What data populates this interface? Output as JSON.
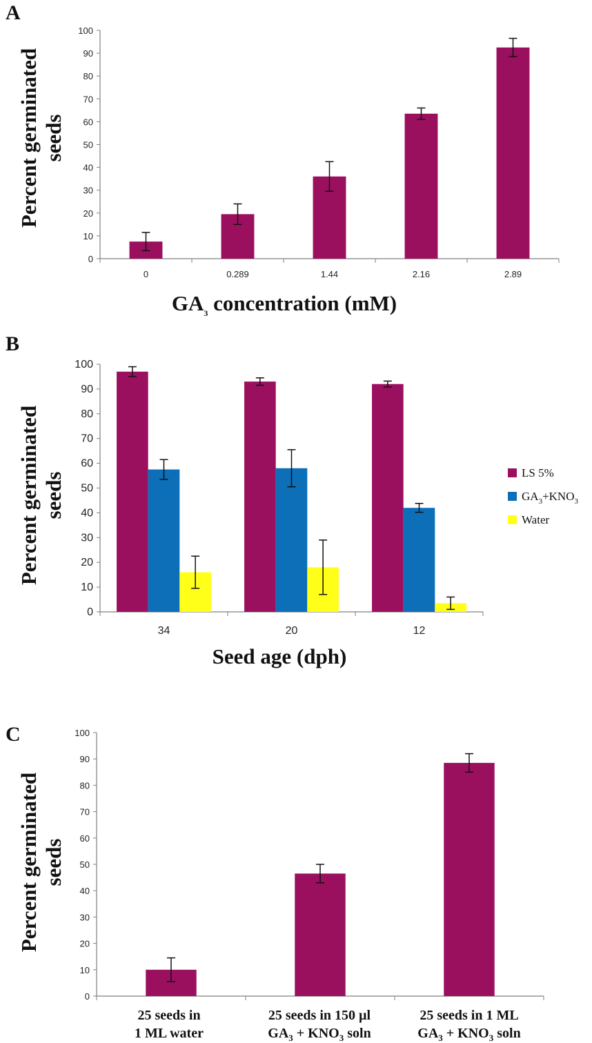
{
  "colors": {
    "magenta": "#9b0f5f",
    "blue": "#0c6fb8",
    "yellow": "#ffff1a",
    "axis": "#7f7f7f",
    "error": "#111111"
  },
  "chart_data": [
    {
      "panel": "A",
      "type": "bar",
      "ylabel_line1": "Percent germinated",
      "ylabel_line2": "seeds",
      "xlabel_main": "GA",
      "xlabel_sub": "3",
      "xlabel_rest": " concentration (mM)",
      "categories": [
        "0",
        "0.289",
        "1.44",
        "2.16",
        "2.89"
      ],
      "series": [
        {
          "values": [
            7.5,
            19.5,
            36,
            63.5,
            92.5
          ],
          "errors": [
            4,
            4.5,
            6.5,
            2.5,
            4
          ],
          "color": "#9b0f5f"
        }
      ],
      "ylim": [
        0,
        100
      ],
      "yticks": [
        0,
        10,
        20,
        30,
        40,
        50,
        60,
        70,
        80,
        90,
        100
      ],
      "grid": false
    },
    {
      "panel": "B",
      "type": "bar",
      "ylabel_line1": "Percent germinated",
      "ylabel_line2": "seeds",
      "xlabel": "Seed age (dph)",
      "categories": [
        "34",
        "20",
        "12"
      ],
      "series": [
        {
          "name": "LS 5%",
          "values": [
            97,
            93,
            92
          ],
          "errors": [
            2,
            1.5,
            1.2
          ],
          "color": "#9b0f5f"
        },
        {
          "name_main": "GA",
          "name_sub": "3",
          "name_rest": "+KNO",
          "name_sub2": "3",
          "values": [
            57.5,
            58,
            42
          ],
          "errors": [
            4,
            7.5,
            1.8
          ],
          "color": "#0c6fb8"
        },
        {
          "name": "Water",
          "values": [
            16,
            18,
            3.5
          ],
          "errors": [
            6.5,
            11,
            2.5
          ],
          "color": "#ffff1a"
        }
      ],
      "ylim": [
        0,
        100
      ],
      "yticks": [
        0,
        10,
        20,
        30,
        40,
        50,
        60,
        70,
        80,
        90,
        100
      ],
      "legend": "right",
      "grid": false
    },
    {
      "panel": "C",
      "type": "bar",
      "ylabel_line1": "Percent germinated",
      "ylabel_line2": "seeds",
      "categories": [
        {
          "line1": "25 seeds in",
          "line2": "1 ML water"
        },
        {
          "line1": "25 seeds in 150 µl",
          "line2_a": "GA",
          "line2_sub": "3",
          "line2_b": " + KNO",
          "line2_sub2": "3",
          "line2_c": " soln"
        },
        {
          "line1": "25 seeds in 1 ML",
          "line2_a": "GA",
          "line2_sub": "3",
          "line2_b": " + KNO",
          "line2_sub2": "3",
          "line2_c": " soln"
        }
      ],
      "series": [
        {
          "values": [
            10,
            46.5,
            88.5
          ],
          "errors": [
            4.5,
            3.5,
            3.5
          ],
          "color": "#9b0f5f"
        }
      ],
      "ylim": [
        0,
        100
      ],
      "yticks": [
        0,
        10,
        20,
        30,
        40,
        50,
        60,
        70,
        80,
        90,
        100
      ],
      "grid": false
    }
  ]
}
